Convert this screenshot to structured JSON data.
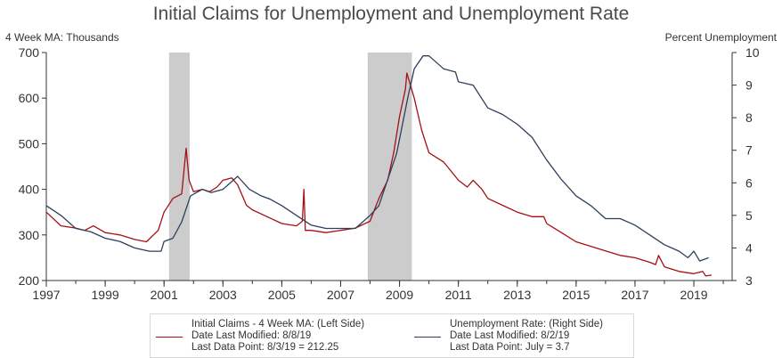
{
  "chart_data": {
    "type": "line",
    "title": "Initial Claims for Unemployment and Unemployment Rate",
    "left_axis_label": "4 Week MA: Thousands",
    "right_axis_label": "Percent Unemployment",
    "x_ticks": [
      "1997",
      "1999",
      "2001",
      "2003",
      "2005",
      "2007",
      "2009",
      "2011",
      "2013",
      "2015",
      "2017",
      "2019"
    ],
    "xlim": [
      1997,
      2020.3
    ],
    "ylim_left": [
      200,
      700
    ],
    "yticks_left": [
      "200",
      "300",
      "400",
      "500",
      "600",
      "700"
    ],
    "ylim_right": [
      3,
      10
    ],
    "yticks_right": [
      "3",
      "4",
      "5",
      "6",
      "7",
      "8",
      "9",
      "10"
    ],
    "recessions": [
      [
        2001.17,
        2001.87
      ],
      [
        2007.92,
        2009.42
      ]
    ],
    "grid": false,
    "series": [
      {
        "name": "Initial Claims - 4 Week MA: (Left Side)",
        "axis": "left",
        "color": "#a50f15",
        "x": [
          1997.0,
          1997.5,
          1998.0,
          1998.3,
          1998.6,
          1999.0,
          1999.5,
          2000.0,
          2000.4,
          2000.8,
          2001.0,
          2001.3,
          2001.6,
          2001.75,
          2001.85,
          2002.0,
          2002.3,
          2002.55,
          2002.8,
          2003.0,
          2003.3,
          2003.5,
          2003.8,
          2004.0,
          2004.5,
          2005.0,
          2005.5,
          2005.7,
          2005.75,
          2005.8,
          2006.0,
          2006.5,
          2007.0,
          2007.5,
          2008.0,
          2008.3,
          2008.6,
          2008.8,
          2009.0,
          2009.2,
          2009.25,
          2009.5,
          2009.75,
          2010.0,
          2010.5,
          2011.0,
          2011.3,
          2011.5,
          2011.8,
          2012.0,
          2012.5,
          2013.0,
          2013.5,
          2013.9,
          2014.0,
          2014.5,
          2015.0,
          2015.5,
          2016.0,
          2016.5,
          2017.0,
          2017.5,
          2017.7,
          2017.8,
          2018.0,
          2018.5,
          2019.0,
          2019.3,
          2019.4,
          2019.6
        ],
        "values": [
          350,
          320,
          315,
          310,
          320,
          305,
          300,
          290,
          285,
          310,
          350,
          380,
          390,
          490,
          420,
          395,
          400,
          395,
          405,
          420,
          425,
          410,
          365,
          355,
          340,
          325,
          320,
          330,
          400,
          310,
          310,
          305,
          310,
          315,
          330,
          380,
          420,
          480,
          560,
          620,
          655,
          600,
          530,
          480,
          460,
          420,
          405,
          420,
          400,
          380,
          365,
          350,
          340,
          340,
          325,
          305,
          285,
          275,
          265,
          255,
          250,
          240,
          235,
          255,
          230,
          220,
          215,
          220,
          210,
          212
        ]
      },
      {
        "name": "Unemployment Rate: (Right Side)",
        "axis": "right",
        "color": "#2e3f5c",
        "x": [
          1997.0,
          1997.5,
          1998.0,
          1998.5,
          1999.0,
          1999.5,
          2000.0,
          2000.5,
          2000.9,
          2001.0,
          2001.3,
          2001.6,
          2001.9,
          2002.3,
          2002.6,
          2003.0,
          2003.5,
          2003.9,
          2004.3,
          2004.6,
          2005.0,
          2005.5,
          2006.0,
          2006.5,
          2007.0,
          2007.5,
          2008.0,
          2008.3,
          2008.6,
          2008.9,
          2009.1,
          2009.3,
          2009.5,
          2009.8,
          2010.0,
          2010.5,
          2010.9,
          2011.0,
          2011.5,
          2012.0,
          2012.5,
          2013.0,
          2013.5,
          2014.0,
          2014.5,
          2015.0,
          2015.5,
          2016.0,
          2016.5,
          2017.0,
          2017.5,
          2018.0,
          2018.5,
          2018.8,
          2019.0,
          2019.2,
          2019.5
        ],
        "values": [
          5.3,
          5.0,
          4.6,
          4.5,
          4.3,
          4.2,
          4.0,
          3.9,
          3.9,
          4.2,
          4.3,
          4.8,
          5.6,
          5.8,
          5.7,
          5.8,
          6.2,
          5.8,
          5.6,
          5.5,
          5.3,
          5.0,
          4.7,
          4.6,
          4.6,
          4.6,
          5.0,
          5.3,
          6.1,
          6.9,
          7.8,
          8.7,
          9.5,
          9.9,
          9.9,
          9.5,
          9.4,
          9.1,
          9.0,
          8.3,
          8.1,
          7.8,
          7.4,
          6.7,
          6.1,
          5.6,
          5.3,
          4.9,
          4.9,
          4.7,
          4.4,
          4.1,
          3.9,
          3.7,
          3.9,
          3.6,
          3.7
        ]
      }
    ]
  },
  "legend": [
    {
      "lines": [
        "Initial Claims - 4 Week MA: (Left Side)",
        "Date Last Modified: 8/8/19",
        "Last Data Point: 8/3/19 = 212.25"
      ],
      "color": "#a50f15"
    },
    {
      "lines": [
        "Unemployment Rate: (Right Side)",
        "Date Last Modified: 8/2/19",
        "Last Data Point: July = 3.7"
      ],
      "color": "#2e3f5c"
    }
  ],
  "colors": {
    "recession_fill": "#cccccc",
    "axis": "#333333"
  }
}
